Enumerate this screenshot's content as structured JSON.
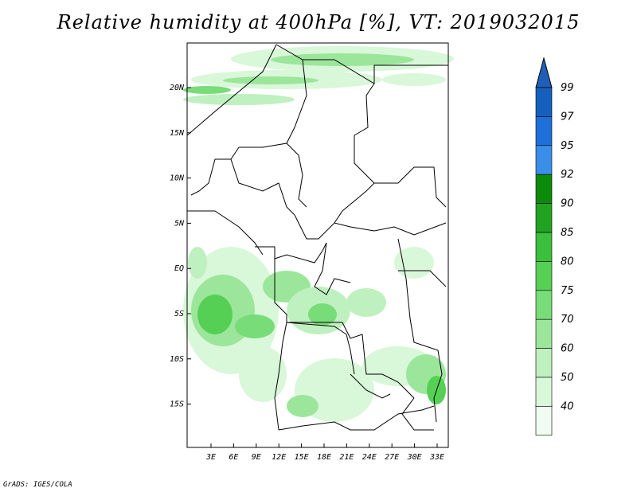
{
  "title": "Relative humidity at 400hPa [%], VT: 2019032015",
  "credit": "GrADS: IGES/COLA",
  "map": {
    "lat_labels": [
      "20N",
      "15N",
      "10N",
      "5N",
      "EQ",
      "5S",
      "10S",
      "15S"
    ],
    "lon_labels": [
      "3E",
      "6E",
      "9E",
      "12E",
      "15E",
      "18E",
      "21E",
      "24E",
      "27E",
      "30E",
      "33E"
    ]
  },
  "colorbar": {
    "labels": [
      "99",
      "97",
      "95",
      "92",
      "90",
      "85",
      "80",
      "75",
      "70",
      "60",
      "50",
      "40"
    ],
    "colors": [
      "#1560bd",
      "#1e6fd8",
      "#3b8ee8",
      "#0a8c0a",
      "#21a321",
      "#3cbf3c",
      "#55d055",
      "#78dc78",
      "#9be69b",
      "#bff0bf",
      "#d9f7d9",
      "#f0fcf0"
    ]
  }
}
